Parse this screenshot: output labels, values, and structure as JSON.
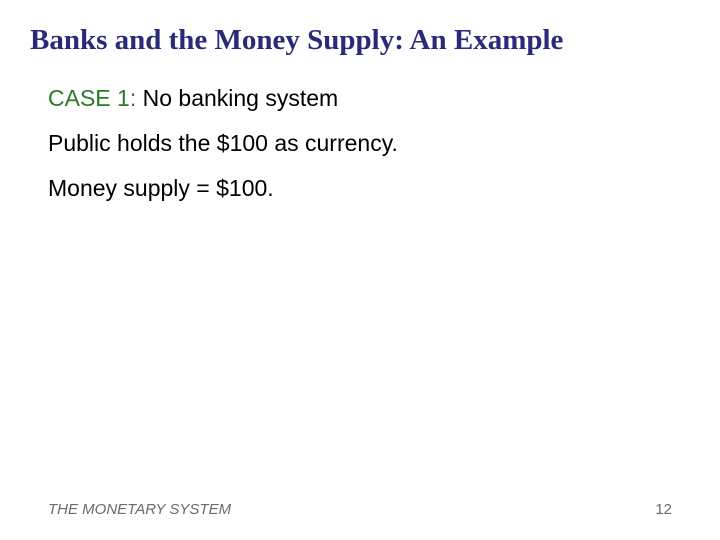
{
  "slide": {
    "title": "Banks and the Money Supply:  An Example",
    "case": {
      "label": "CASE 1:",
      "text": "  No banking system"
    },
    "body": [
      "Public holds the $100 as currency.",
      "Money supply = $100."
    ],
    "footer": {
      "left": "THE MONETARY SYSTEM",
      "page": "12"
    }
  },
  "colors": {
    "title_color": "#2a2a7a",
    "case_label_color": "#2a7a2a",
    "body_color": "#000000",
    "footer_color": "#6b6b6b",
    "background": "#ffffff"
  },
  "typography": {
    "title_fontsize": 29,
    "body_fontsize": 23,
    "footer_fontsize": 15,
    "title_font": "Georgia",
    "body_font": "Arial"
  }
}
